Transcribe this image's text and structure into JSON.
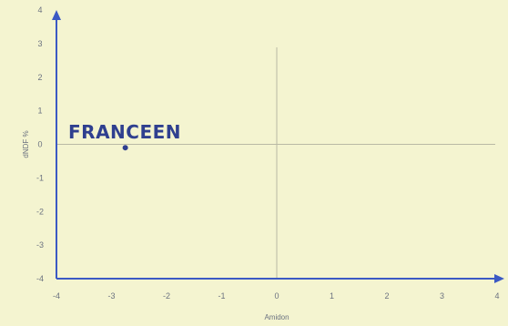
{
  "chart_data": {
    "type": "scatter",
    "xlabel": "Amidon",
    "ylabel": "dNDF %",
    "xlim": [
      -4,
      4
    ],
    "ylim": [
      -4,
      4
    ],
    "xticks": [
      "-4",
      "-3",
      "-2",
      "-1",
      "0",
      "1",
      "2",
      "3",
      "4"
    ],
    "yticks": [
      "-4",
      "-3",
      "-2",
      "-1",
      "0",
      "1",
      "2",
      "3",
      "4"
    ],
    "points": [
      {
        "label": "FRANCEEN",
        "x": -2.75,
        "y": -0.1
      }
    ],
    "colors": {
      "axis": "#3b59c4",
      "point": "#2f3f8f",
      "label": "#2f3f8f",
      "grid": "#b9b9a4"
    }
  }
}
